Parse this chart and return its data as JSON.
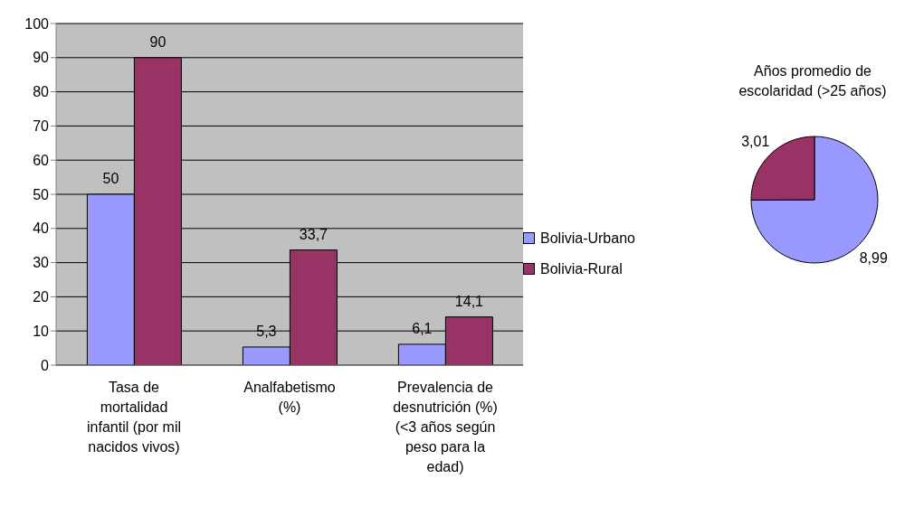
{
  "chart_data": [
    {
      "type": "bar",
      "categories": [
        "Tasa de mortalidad infantil (por mil nacidos vivos)",
        "Analfabetismo (%)",
        "Prevalencia de desnutrición (%) (<3 años según peso para la edad)"
      ],
      "series": [
        {
          "name": "Bolivia-Urbano",
          "color": "#9999ff",
          "values": [
            50,
            5.3,
            6.1
          ],
          "value_labels": [
            "50",
            "5,3",
            "6,1"
          ]
        },
        {
          "name": "Bolivia-Rural",
          "color": "#993366",
          "values": [
            90,
            33.7,
            14.1
          ],
          "value_labels": [
            "90",
            "33,7",
            "14,1"
          ]
        }
      ],
      "ylim": [
        0,
        100
      ],
      "yticks": [
        0,
        10,
        20,
        30,
        40,
        50,
        60,
        70,
        80,
        90,
        100
      ],
      "grid": "y",
      "legend": "right"
    },
    {
      "type": "pie",
      "title": "Años promedio de escolaridad (>25 años)",
      "categories": [
        null,
        null
      ],
      "values": [
        8.99,
        3.01
      ],
      "value_labels": [
        "8,99",
        "3,01"
      ],
      "colors": [
        "#9999ff",
        "#993366"
      ]
    }
  ]
}
